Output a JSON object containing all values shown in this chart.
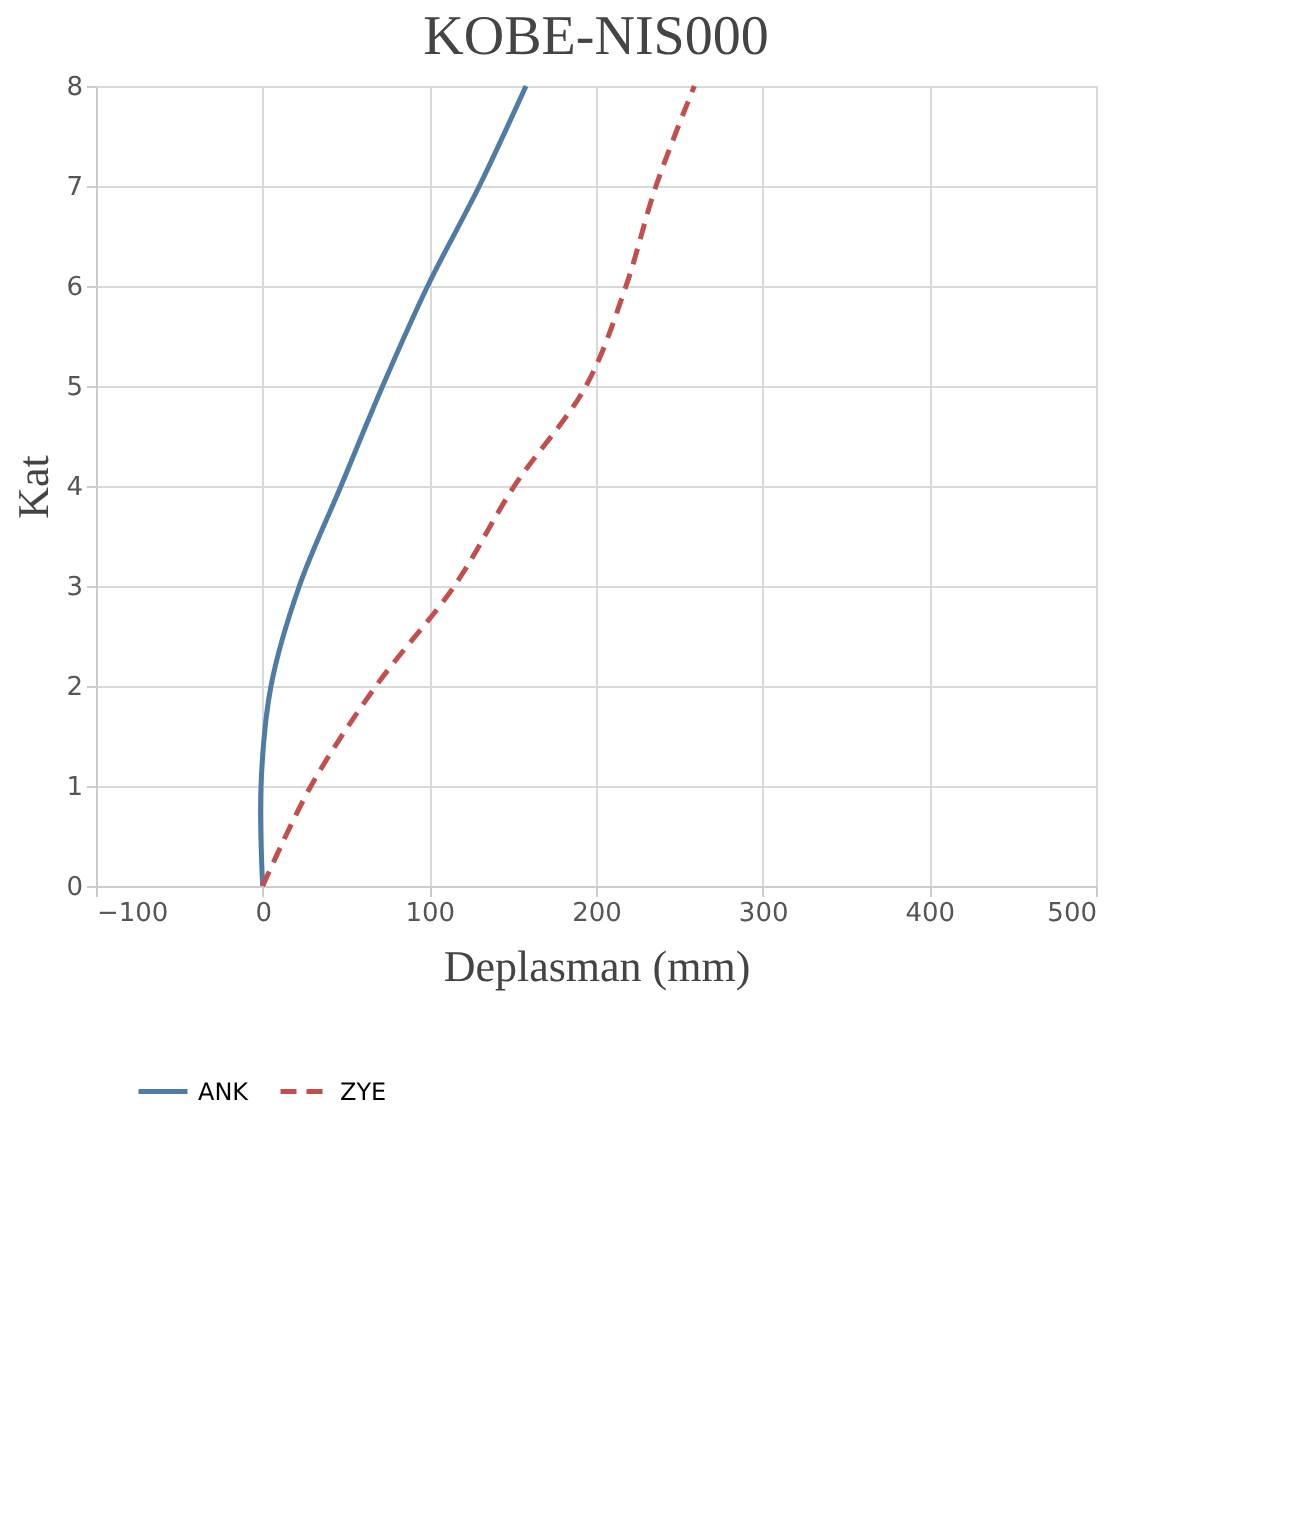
{
  "chart_data": {
    "type": "line",
    "title": "KOBE-NIS000",
    "xlabel": "Deplasman  (mm)",
    "ylabel": "Kat",
    "xlim": [
      -100,
      500
    ],
    "xticks": [
      -100,
      0,
      100,
      200,
      300,
      400,
      500
    ],
    "ylim": [
      0,
      8
    ],
    "yticks": [
      0,
      1,
      2,
      3,
      4,
      5,
      6,
      7,
      8
    ],
    "grid": true,
    "legend": "bottom",
    "marker": "none",
    "series": [
      {
        "name": "ANK",
        "color": "#4f7ba5",
        "line_style": "solid",
        "x": [
          0,
          -1,
          5,
          22,
          47,
          72,
          99,
          130,
          158
        ],
        "values": [
          0,
          1,
          2,
          3,
          4,
          5,
          6,
          7,
          8
        ]
      },
      {
        "name": "ZYE",
        "color": "#c0504d",
        "line_style": "dashed",
        "x": [
          0,
          29,
          68,
          115,
          151,
          194,
          218,
          236,
          259
        ],
        "values": [
          0,
          1,
          2,
          3,
          4,
          5,
          6,
          7,
          8
        ]
      }
    ]
  }
}
